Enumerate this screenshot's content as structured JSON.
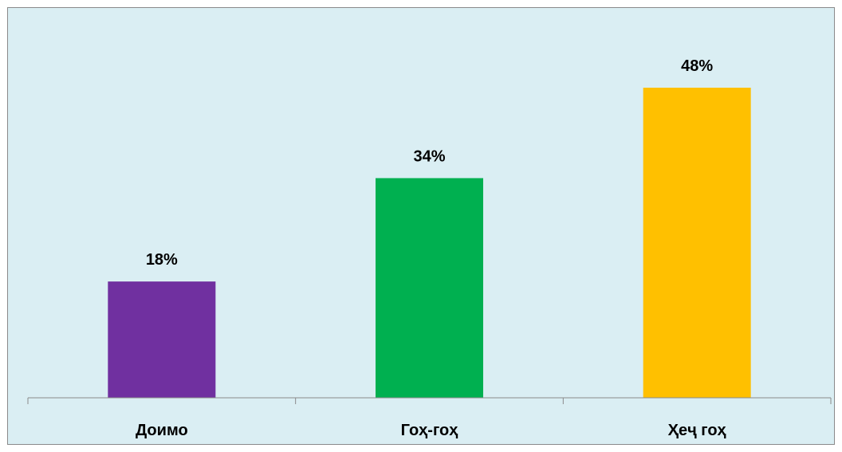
{
  "chart_data": {
    "type": "bar",
    "categories": [
      "Доимо",
      "Гоҳ-гоҳ",
      "Ҳеҷ гоҳ"
    ],
    "values": [
      18,
      34,
      48
    ],
    "value_labels": [
      "18%",
      "34%",
      "48%"
    ],
    "bar_colors": [
      "#7030a0",
      "#00b050",
      "#ffc000"
    ],
    "background_color": "#daeef3",
    "ylim": [
      0,
      55
    ],
    "grid": false,
    "legend": "none"
  }
}
